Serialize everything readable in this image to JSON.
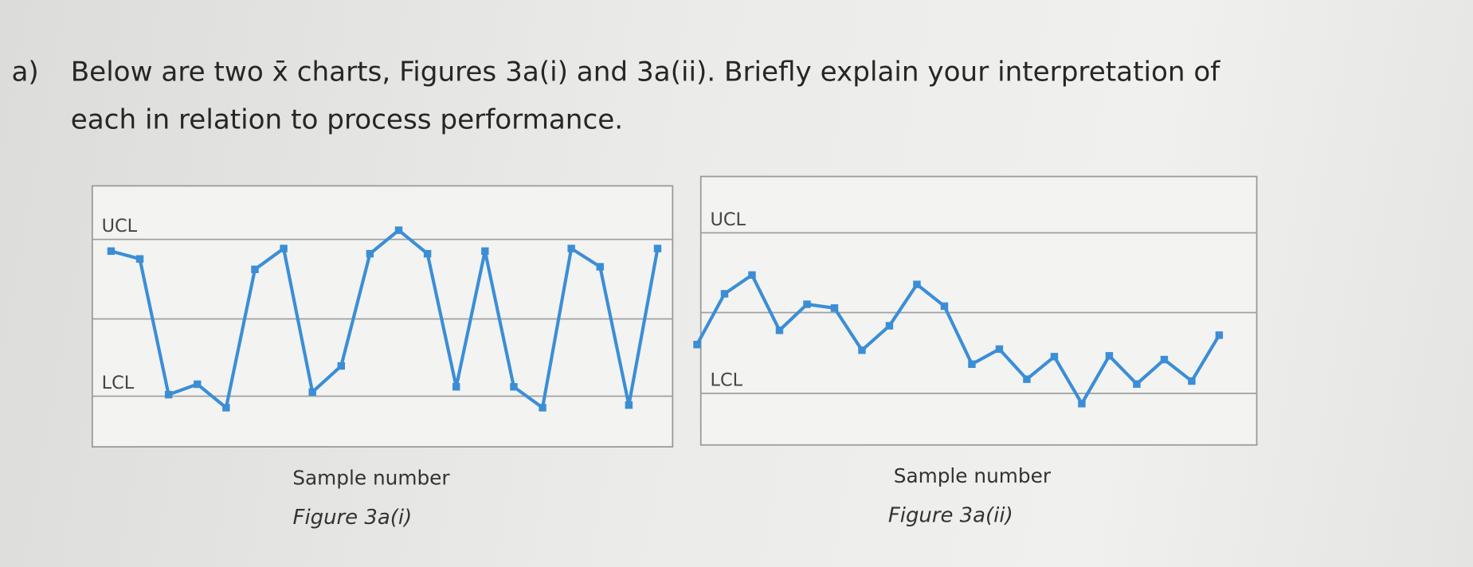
{
  "question": {
    "label": "a)",
    "lines": [
      "Below are two x̄ charts, Figures 3a(i) and 3a(ii). Briefly explain your interpretation of",
      "each in relation to process performance."
    ]
  },
  "chart_data": [
    {
      "type": "line",
      "xlabel": "Sample number",
      "caption": "Figure 3a(i)",
      "color": "#3b8ed6",
      "ylim": [
        0,
        100
      ],
      "hlines": [
        {
          "label": "UCL",
          "value": 79.5
        },
        {
          "value": 49
        },
        {
          "label": "LCL",
          "value": 19.4
        }
      ],
      "values": [
        75,
        72,
        20,
        24,
        15,
        68,
        76,
        21,
        31,
        74,
        83,
        74,
        23,
        75,
        23,
        15,
        76,
        69,
        16,
        76
      ]
    },
    {
      "type": "line",
      "xlabel": "Sample number",
      "caption": "Figure 3a(ii)",
      "color": "#3b8ed6",
      "ylim": [
        0,
        100
      ],
      "hlines": [
        {
          "label": "UCL",
          "value": 79
        },
        {
          "value": 49.3
        },
        {
          "label": "LCL",
          "value": 19.2
        }
      ],
      "values": [
        37.4,
        56.3,
        63.3,
        42.7,
        52.4,
        51,
        35.3,
        44.4,
        59.8,
        51.7,
        30.1,
        35.7,
        24.5,
        32.9,
        15.4,
        33.2,
        22.7,
        31.8,
        23.8,
        40.9
      ]
    }
  ]
}
